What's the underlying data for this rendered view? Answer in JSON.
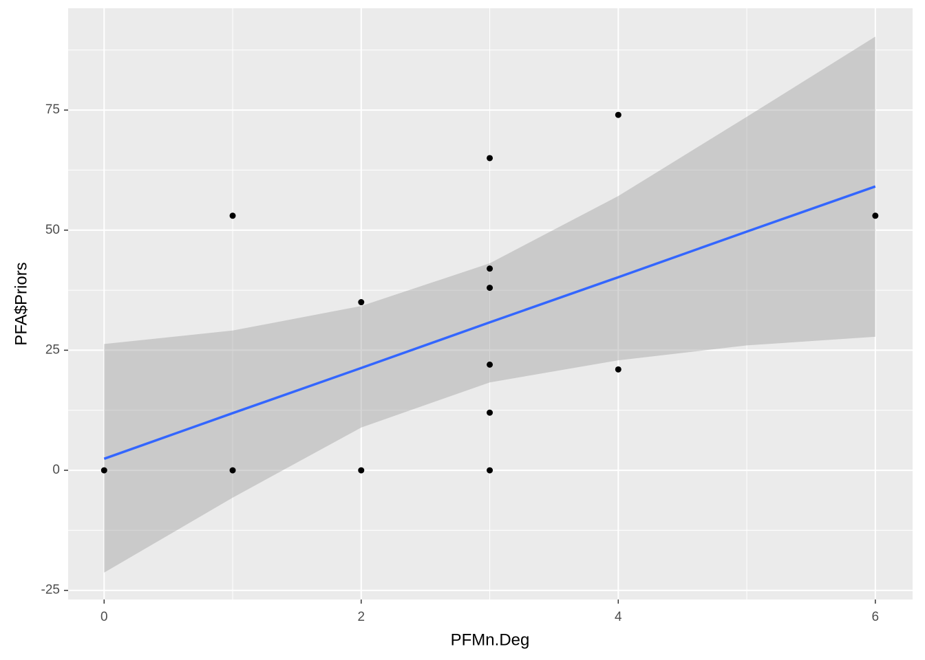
{
  "chart_data": {
    "type": "scatter",
    "x_label": "PFMn.Deg",
    "y_label": "PFA$Priors",
    "xlim": [
      -0.28,
      6.29
    ],
    "ylim": [
      -26.9,
      96.2
    ],
    "xticks": [
      0,
      2,
      4,
      6
    ],
    "yticks": [
      -25,
      0,
      25,
      50,
      75
    ],
    "grid": true,
    "minor_grid": true,
    "background": "#ebebeb",
    "series": [
      {
        "color": "#000000",
        "x": [
          0,
          1,
          1,
          2,
          2,
          3,
          3,
          3,
          3,
          3,
          3,
          4,
          4,
          6
        ],
        "values": [
          0,
          53,
          0,
          35,
          0,
          65,
          42,
          38,
          22,
          12,
          0,
          74,
          21,
          53
        ]
      }
    ],
    "fit": {
      "color": "#3366ff",
      "x": [
        0,
        1,
        2,
        3,
        4,
        5,
        6
      ],
      "values": [
        2.4,
        11.9,
        21.3,
        30.8,
        40.2,
        49.7,
        59.1
      ]
    },
    "band": {
      "color": "#999999",
      "x": [
        0,
        1,
        2,
        3,
        4,
        5,
        6
      ],
      "upper": [
        26.3,
        29.1,
        34.2,
        43.1,
        57.1,
        73.6,
        90.3
      ],
      "lower": [
        -21.3,
        -5.7,
        8.9,
        18.3,
        22.9,
        26.0,
        27.8
      ]
    }
  }
}
